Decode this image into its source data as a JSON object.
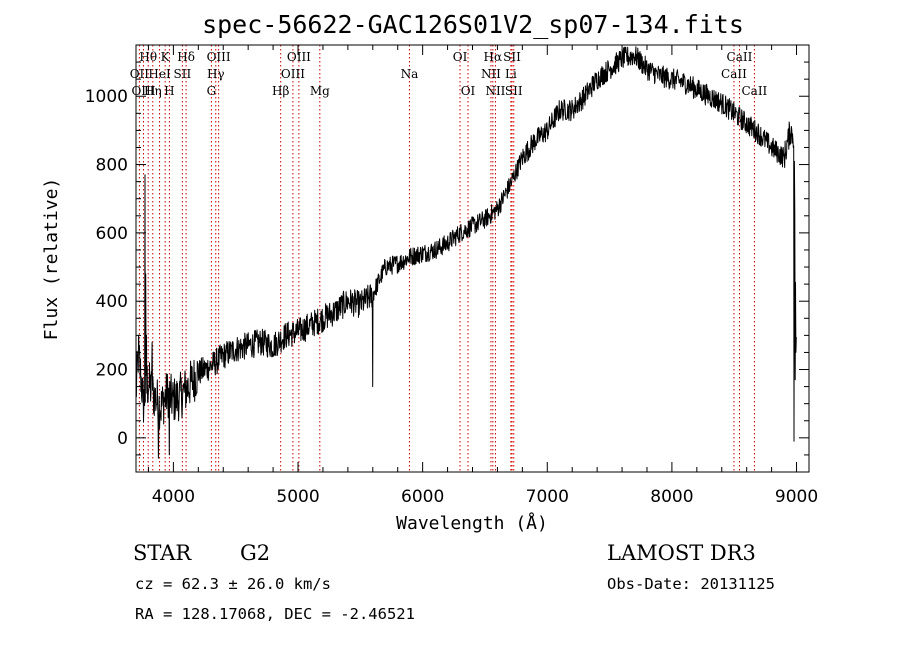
{
  "chart_data": {
    "type": "line",
    "title": "spec-56622-GAC126S01V2_sp07-134.fits",
    "xlabel": "Wavelength (Å)",
    "ylabel": "Flux (relative)",
    "xlim": [
      3700,
      9100
    ],
    "ylim": [
      -100,
      1150
    ],
    "xticks": [
      4000,
      5000,
      6000,
      7000,
      8000,
      9000
    ],
    "yticks": [
      0,
      200,
      400,
      600,
      800,
      1000
    ],
    "spectrum_anchors": [
      [
        3700,
        130
      ],
      [
        3720,
        250
      ],
      [
        3760,
        100
      ],
      [
        3800,
        160
      ],
      [
        3850,
        120
      ],
      [
        3900,
        90
      ],
      [
        3950,
        130
      ],
      [
        4000,
        110
      ],
      [
        4050,
        120
      ],
      [
        4100,
        140
      ],
      [
        4200,
        190
      ],
      [
        4300,
        210
      ],
      [
        4400,
        240
      ],
      [
        4500,
        260
      ],
      [
        4600,
        270
      ],
      [
        4700,
        280
      ],
      [
        4800,
        270
      ],
      [
        4900,
        300
      ],
      [
        5000,
        310
      ],
      [
        5100,
        330
      ],
      [
        5200,
        350
      ],
      [
        5300,
        370
      ],
      [
        5400,
        400
      ],
      [
        5500,
        390
      ],
      [
        5600,
        420
      ],
      [
        5700,
        500
      ],
      [
        5800,
        510
      ],
      [
        5900,
        530
      ],
      [
        6000,
        540
      ],
      [
        6100,
        550
      ],
      [
        6200,
        570
      ],
      [
        6300,
        600
      ],
      [
        6400,
        620
      ],
      [
        6500,
        640
      ],
      [
        6600,
        670
      ],
      [
        6700,
        740
      ],
      [
        6800,
        820
      ],
      [
        6900,
        870
      ],
      [
        7000,
        900
      ],
      [
        7100,
        960
      ],
      [
        7200,
        960
      ],
      [
        7300,
        1000
      ],
      [
        7400,
        1050
      ],
      [
        7500,
        1080
      ],
      [
        7600,
        1110
      ],
      [
        7700,
        1120
      ],
      [
        7800,
        1080
      ],
      [
        7900,
        1060
      ],
      [
        8000,
        1050
      ],
      [
        8100,
        1040
      ],
      [
        8200,
        1020
      ],
      [
        8300,
        1000
      ],
      [
        8400,
        980
      ],
      [
        8500,
        950
      ],
      [
        8600,
        920
      ],
      [
        8700,
        890
      ],
      [
        8800,
        850
      ],
      [
        8900,
        820
      ],
      [
        8950,
        900
      ],
      [
        8980,
        880
      ],
      [
        9000,
        200
      ]
    ],
    "spikes": [
      [
        3773,
        770
      ],
      [
        3779,
        480
      ],
      [
        3784,
        300
      ],
      [
        3790,
        210
      ],
      [
        3830,
        280
      ],
      [
        3880,
        -60
      ],
      [
        3967,
        -50
      ],
      [
        5600,
        150
      ],
      [
        8980,
        -10
      ],
      [
        8990,
        170
      ],
      [
        8994,
        250
      ]
    ],
    "emission_lines": [
      {
        "name": "Hθ",
        "wavelength": 3798,
        "row": 1
      },
      {
        "name": "OII",
        "wavelength": 3727,
        "row": 2
      },
      {
        "name": "OIII",
        "wavelength": 3760,
        "row": 3
      },
      {
        "name": "HeI",
        "wavelength": 3889,
        "row": 2
      },
      {
        "name": "Hη",
        "wavelength": 3835,
        "row": 3
      },
      {
        "name": "K",
        "wavelength": 3934,
        "row": 1
      },
      {
        "name": "H",
        "wavelength": 3968,
        "row": 3
      },
      {
        "name": "SII",
        "wavelength": 4072,
        "row": 2
      },
      {
        "name": "Hδ",
        "wavelength": 4102,
        "row": 1
      },
      {
        "name": "OIII",
        "wavelength": 4363,
        "row": 1
      },
      {
        "name": "Hγ",
        "wavelength": 4340,
        "row": 2
      },
      {
        "name": "G",
        "wavelength": 4305,
        "row": 3
      },
      {
        "name": "Hβ",
        "wavelength": 4861,
        "row": 3
      },
      {
        "name": "OIII",
        "wavelength": 4959,
        "row": 2
      },
      {
        "name": "OIII",
        "wavelength": 5007,
        "row": 1
      },
      {
        "name": "Mg",
        "wavelength": 5175,
        "row": 3
      },
      {
        "name": "Na",
        "wavelength": 5894,
        "row": 2
      },
      {
        "name": "OI",
        "wavelength": 6300,
        "row": 1
      },
      {
        "name": "OI",
        "wavelength": 6364,
        "row": 3
      },
      {
        "name": "Hα",
        "wavelength": 6563,
        "row": 1
      },
      {
        "name": "NII",
        "wavelength": 6548,
        "row": 2
      },
      {
        "name": "NII",
        "wavelength": 6584,
        "row": 3
      },
      {
        "name": "SII",
        "wavelength": 6717,
        "row": 1
      },
      {
        "name": "Li",
        "wavelength": 6708,
        "row": 2
      },
      {
        "name": "SII",
        "wavelength": 6731,
        "row": 3
      },
      {
        "name": "CaII",
        "wavelength": 8542,
        "row": 1
      },
      {
        "name": "CaII",
        "wavelength": 8498,
        "row": 2
      },
      {
        "name": "CaII",
        "wavelength": 8662,
        "row": 3
      }
    ],
    "colors": {
      "spectrum": "#000000",
      "line_markers": "#cc0000",
      "axes": "#000000"
    }
  },
  "info": {
    "object_type": "STAR",
    "subclass": "G2",
    "survey": "LAMOST DR3",
    "cz": "cz = 62.3 ± 26.0 km/s",
    "obs_date": "Obs-Date: 20131125",
    "coords": "RA = 128.17068, DEC =  -2.46521"
  }
}
